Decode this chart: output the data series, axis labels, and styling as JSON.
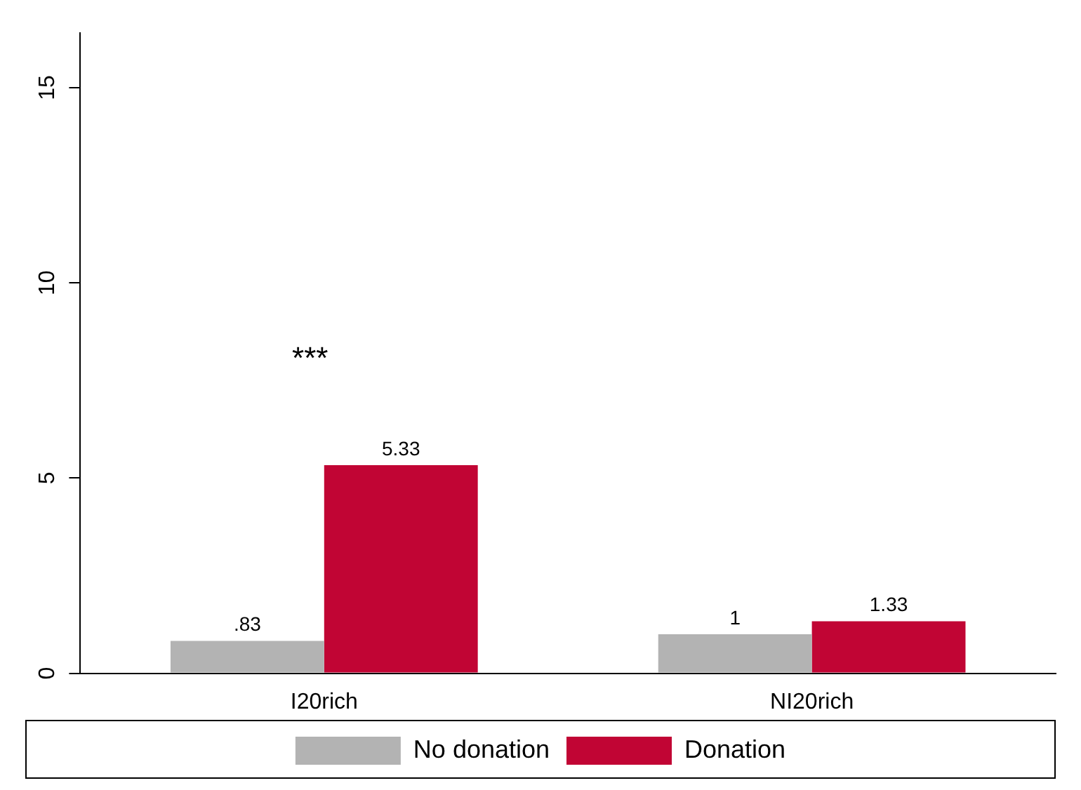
{
  "chart_data": {
    "type": "bar",
    "categories": [
      "I20rich",
      "NI20rich"
    ],
    "series": [
      {
        "name": "No donation",
        "color": "#b3b3b3",
        "values": [
          0.83,
          1
        ],
        "value_labels": [
          ".83",
          "1"
        ]
      },
      {
        "name": "Donation",
        "color": "#c10534",
        "values": [
          5.33,
          1.33
        ],
        "value_labels": [
          "5.33",
          "1.33"
        ]
      }
    ],
    "ylim": [
      0,
      16.4
    ],
    "yticks": [
      0,
      5,
      10,
      15
    ],
    "grid": false,
    "legend": "bottom",
    "annotations": [
      "***"
    ]
  }
}
